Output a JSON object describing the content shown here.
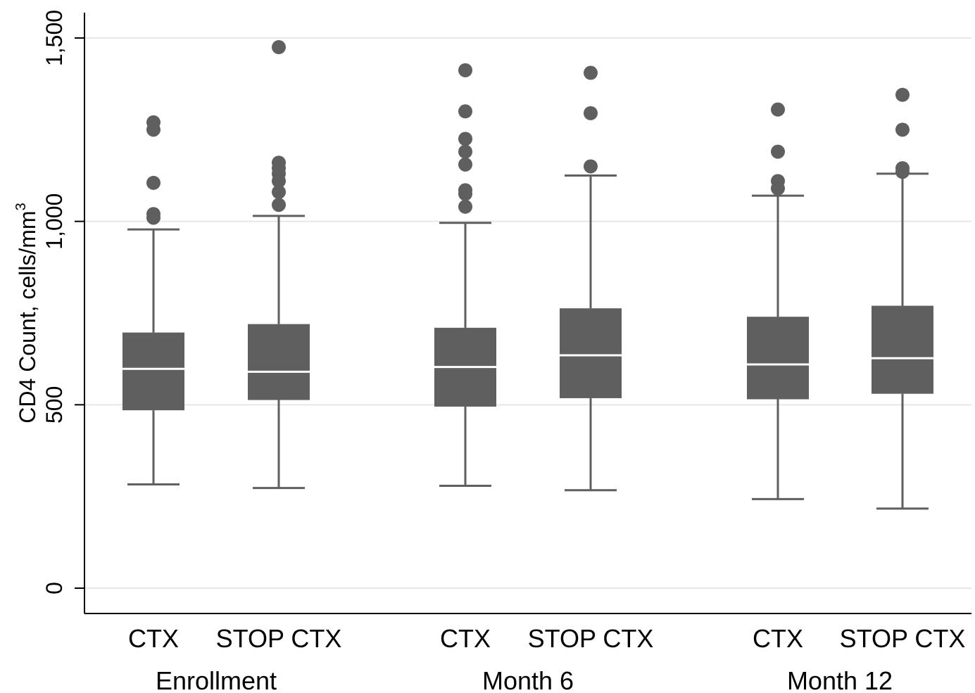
{
  "chart_data": {
    "type": "box",
    "ylabel": "CD4 Count, cells/mm",
    "ylabel_sup": "3",
    "ylim": [
      -70,
      1570
    ],
    "yticks": [
      0,
      500,
      1000,
      1500
    ],
    "ytick_labels": [
      "0",
      "500",
      "1,000",
      "1,500"
    ],
    "grid": true,
    "colors": {
      "box": "#5f5f5f",
      "median": "#ffffff",
      "grid": "#e6e6e6",
      "axis": "#000000"
    },
    "groups": [
      {
        "label": "Enrollment",
        "boxes": [
          {
            "label": "CTX",
            "q1": 485,
            "median": 598,
            "q3": 697,
            "whisker_low": 283,
            "whisker_high": 978,
            "outliers": [
              1010,
              1020,
              1105,
              1250,
              1270
            ]
          },
          {
            "label": "STOP CTX",
            "q1": 513,
            "median": 590,
            "q3": 720,
            "whisker_low": 273,
            "whisker_high": 1015,
            "outliers": [
              1045,
              1080,
              1110,
              1130,
              1145,
              1160,
              1475
            ]
          }
        ]
      },
      {
        "label": "Month 6",
        "boxes": [
          {
            "label": "CTX",
            "q1": 495,
            "median": 603,
            "q3": 710,
            "whisker_low": 279,
            "whisker_high": 996,
            "outliers": [
              1040,
              1075,
              1085,
              1155,
              1190,
              1225,
              1300,
              1412
            ]
          },
          {
            "label": "STOP CTX",
            "q1": 518,
            "median": 635,
            "q3": 763,
            "whisker_low": 267,
            "whisker_high": 1125,
            "outliers": [
              1150,
              1295,
              1405
            ]
          }
        ]
      },
      {
        "label": "Month 12",
        "boxes": [
          {
            "label": "CTX",
            "q1": 515,
            "median": 610,
            "q3": 740,
            "whisker_low": 243,
            "whisker_high": 1070,
            "outliers": [
              1090,
              1110,
              1190,
              1305
            ]
          },
          {
            "label": "STOP CTX",
            "q1": 530,
            "median": 627,
            "q3": 770,
            "whisker_low": 217,
            "whisker_high": 1130,
            "outliers": [
              1135,
              1145,
              1250,
              1345
            ]
          }
        ]
      }
    ]
  }
}
